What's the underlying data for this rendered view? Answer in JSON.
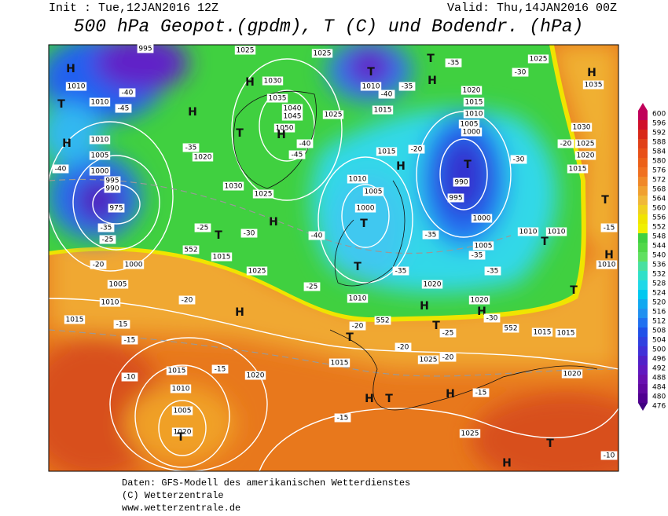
{
  "header": {
    "init": "Init : Tue,12JAN2016 12Z",
    "valid": "Valid: Thu,14JAN2016 00Z",
    "title": "500 hPa Geopot.(gpdm), T (C) und Bodendr. (hPa)"
  },
  "legend": {
    "labels": [
      600,
      596,
      592,
      588,
      584,
      580,
      576,
      572,
      568,
      564,
      560,
      556,
      552,
      548,
      544,
      540,
      536,
      532,
      528,
      524,
      520,
      516,
      512,
      508,
      504,
      500,
      496,
      492,
      488,
      484,
      480,
      476
    ]
  },
  "map": {
    "labels": [
      "995",
      "1010",
      "1010",
      "-45",
      "-40",
      "1010",
      "1005",
      "-40",
      "1000",
      "995",
      "990",
      "975",
      "-35",
      "-25",
      "-20",
      "1000",
      "1005",
      "1010",
      "1015",
      "-15",
      "-15",
      "-10",
      "1015",
      "1010",
      "1005",
      "1020",
      "T",
      "H",
      "-20",
      "1020",
      "-15",
      "1025",
      "1015",
      "T",
      "-25",
      "-30",
      "H",
      "552",
      "1030",
      "1025",
      "1020",
      "-35",
      "H",
      "H",
      "1030",
      "1035",
      "1040",
      "1045",
      "1050",
      "H",
      "T",
      "-40",
      "-45",
      "1025",
      "1025",
      "1025",
      "T",
      "1010",
      "-40",
      "1015",
      "T",
      "-35",
      "H",
      "-35",
      "-30",
      "1025",
      "1020",
      "1015",
      "1010",
      "1005",
      "1000",
      "T",
      "990",
      "995",
      "1000",
      "-20",
      "-30",
      "1015",
      "H",
      "1010",
      "1005",
      "1000",
      "T",
      "-40",
      "-35",
      "1010",
      "1010",
      "T",
      "1005",
      "-35",
      "-35",
      "T",
      "-35",
      "1020",
      "-25",
      "1010",
      "H",
      "1020",
      "H",
      "-30",
      "552",
      "-20",
      "T",
      "T",
      "-25",
      "552",
      "1015",
      "1015",
      "-20",
      "1025",
      "-20",
      "1015",
      "H",
      "-15",
      "H",
      "T",
      "-15",
      "1025",
      "T",
      "H",
      "-10",
      "1020",
      "T",
      "T",
      "-15",
      "H",
      "1010",
      "1035",
      "H",
      "1030",
      "-20",
      "1025",
      "1020",
      "1015",
      "H",
      "T",
      "H"
    ]
  },
  "footer": {
    "lines": [
      "Daten: GFS-Modell des amerikanischen Wetterdienstes",
      "(C) Wetterzentrale",
      "www.wetterzentrale.de"
    ]
  }
}
